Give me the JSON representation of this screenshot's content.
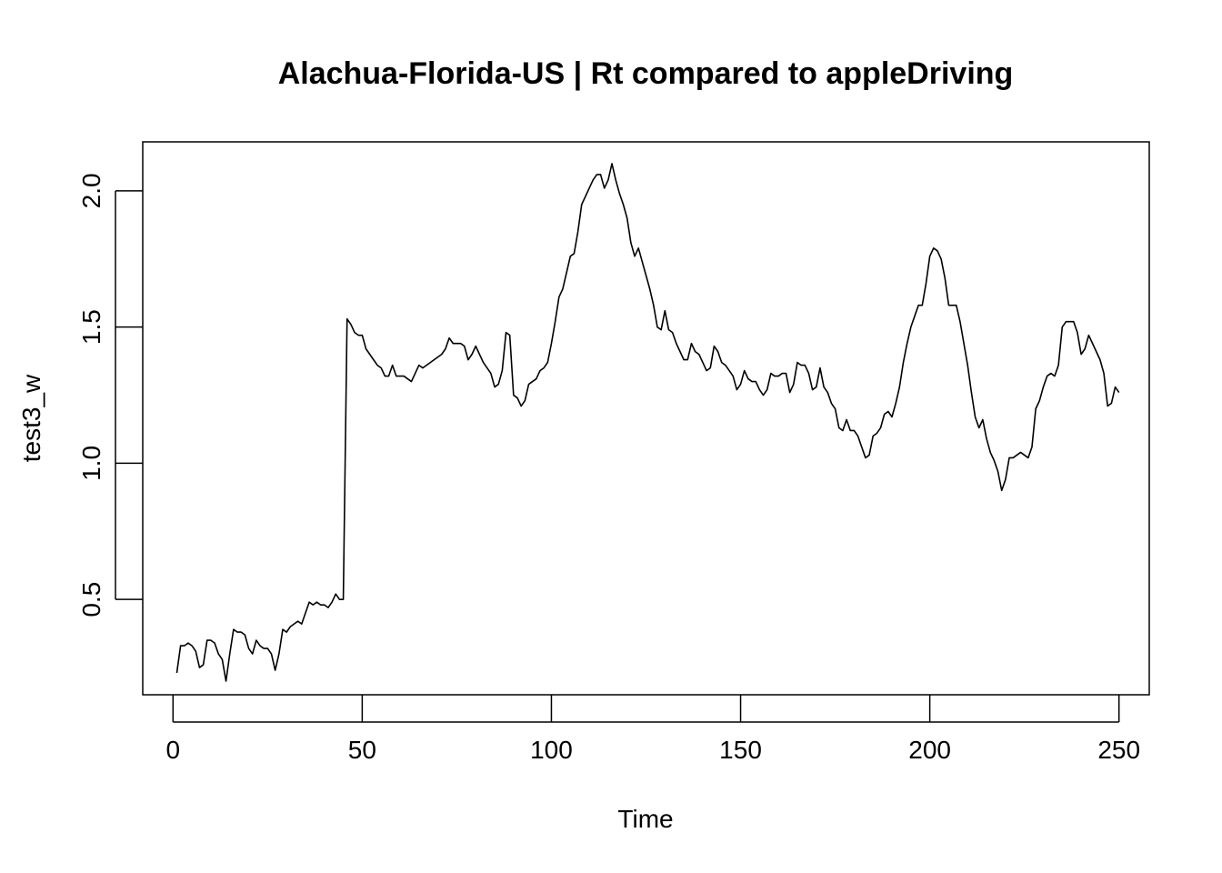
{
  "chart_data": {
    "type": "line",
    "title": "Alachua-Florida-US | Rt compared to appleDriving",
    "xlabel": "Time",
    "ylabel": "test3_w",
    "xlim": [
      -8,
      258
    ],
    "ylim": [
      0.15,
      2.18
    ],
    "x_ticks": [
      0,
      50,
      100,
      150,
      200,
      250
    ],
    "y_ticks": [
      0.5,
      1.0,
      1.5,
      2.0
    ],
    "x_tick_labels": [
      "0",
      "50",
      "100",
      "150",
      "200",
      "250"
    ],
    "y_tick_labels": [
      "0.5",
      "1.0",
      "1.5",
      "2.0"
    ],
    "grid": false,
    "line_color": "#000000",
    "series": [
      {
        "values": [
          0.23,
          0.33,
          0.33,
          0.34,
          0.33,
          0.31,
          0.25,
          0.26,
          0.35,
          0.35,
          0.34,
          0.3,
          0.28,
          0.2,
          0.3,
          0.39,
          0.38,
          0.38,
          0.37,
          0.32,
          0.3,
          0.35,
          0.33,
          0.32,
          0.32,
          0.3,
          0.24,
          0.3,
          0.39,
          0.38,
          0.4,
          0.41,
          0.42,
          0.41,
          0.45,
          0.49,
          0.48,
          0.49,
          0.48,
          0.48,
          0.47,
          0.49,
          0.52,
          0.5,
          0.5,
          1.53,
          1.51,
          1.48,
          1.47,
          1.47,
          1.42,
          1.4,
          1.38,
          1.36,
          1.35,
          1.32,
          1.32,
          1.36,
          1.32,
          1.32,
          1.32,
          1.31,
          1.3,
          1.33,
          1.36,
          1.35,
          1.36,
          1.37,
          1.38,
          1.39,
          1.4,
          1.42,
          1.46,
          1.44,
          1.44,
          1.44,
          1.43,
          1.38,
          1.4,
          1.43,
          1.4,
          1.37,
          1.35,
          1.33,
          1.28,
          1.29,
          1.34,
          1.48,
          1.47,
          1.25,
          1.24,
          1.21,
          1.23,
          1.29,
          1.3,
          1.31,
          1.34,
          1.35,
          1.37,
          1.44,
          1.52,
          1.61,
          1.64,
          1.7,
          1.76,
          1.77,
          1.85,
          1.95,
          1.98,
          2.01,
          2.04,
          2.06,
          2.06,
          2.01,
          2.04,
          2.1,
          2.04,
          1.99,
          1.95,
          1.9,
          1.81,
          1.76,
          1.79,
          1.74,
          1.69,
          1.64,
          1.58,
          1.5,
          1.49,
          1.56,
          1.49,
          1.48,
          1.44,
          1.41,
          1.38,
          1.38,
          1.44,
          1.41,
          1.4,
          1.37,
          1.34,
          1.35,
          1.43,
          1.41,
          1.37,
          1.36,
          1.34,
          1.32,
          1.27,
          1.29,
          1.34,
          1.31,
          1.3,
          1.3,
          1.27,
          1.25,
          1.27,
          1.33,
          1.32,
          1.32,
          1.33,
          1.33,
          1.26,
          1.29,
          1.37,
          1.36,
          1.36,
          1.33,
          1.27,
          1.28,
          1.35,
          1.28,
          1.26,
          1.22,
          1.2,
          1.13,
          1.12,
          1.16,
          1.12,
          1.12,
          1.1,
          1.06,
          1.02,
          1.03,
          1.1,
          1.11,
          1.13,
          1.18,
          1.19,
          1.17,
          1.22,
          1.28,
          1.37,
          1.44,
          1.5,
          1.54,
          1.58,
          1.58,
          1.66,
          1.76,
          1.79,
          1.78,
          1.75,
          1.68,
          1.58,
          1.58,
          1.58,
          1.52,
          1.44,
          1.36,
          1.26,
          1.17,
          1.13,
          1.16,
          1.09,
          1.04,
          1.01,
          0.97,
          0.9,
          0.94,
          1.02,
          1.02,
          1.03,
          1.04,
          1.03,
          1.02,
          1.06,
          1.2,
          1.23,
          1.28,
          1.32,
          1.33,
          1.32,
          1.36,
          1.5,
          1.52,
          1.52,
          1.52,
          1.48,
          1.4,
          1.42,
          1.47,
          1.44,
          1.41,
          1.38,
          1.33,
          1.21,
          1.22,
          1.28,
          1.26
        ]
      }
    ]
  }
}
